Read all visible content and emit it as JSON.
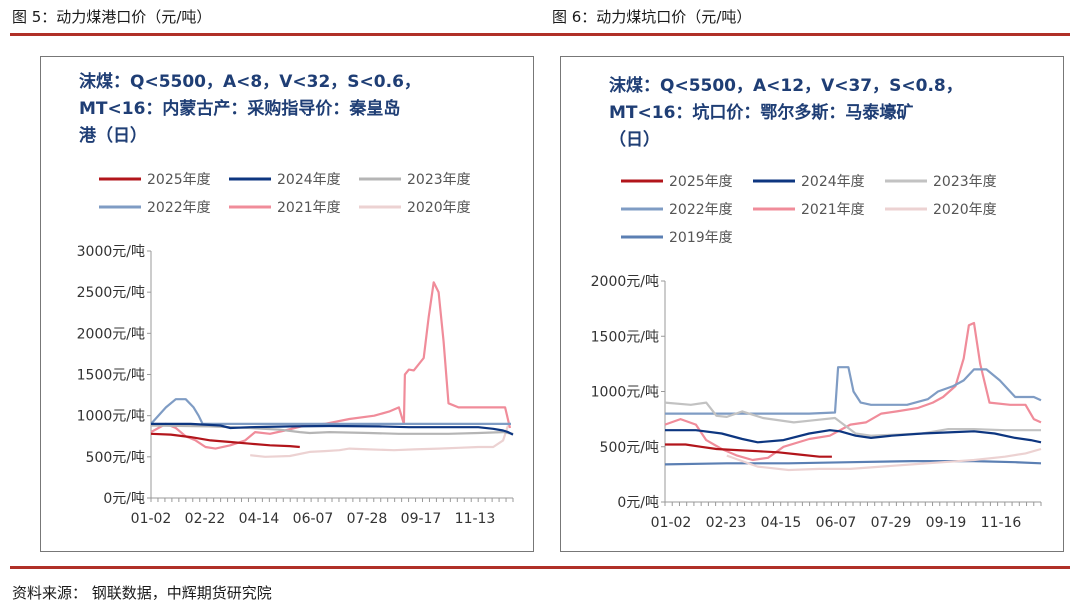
{
  "figures": [
    {
      "caption": "图 5：动力煤港口价（元/吨）",
      "chart_data": {
        "type": "line",
        "title_lines": [
          "沫煤：Q<5500，A<8，V<32，S<0.6，",
          "MT<16：内蒙古产：采购指导价：秦皇岛",
          "港（日）"
        ],
        "y_ticks": [
          "3000元/吨",
          "2500元/吨",
          "2000元/吨",
          "1500元/吨",
          "1000元/吨",
          "500元/吨",
          "0元/吨"
        ],
        "x_ticks": [
          "01-02",
          "02-22",
          "04-14",
          "06-07",
          "07-28",
          "09-17",
          "11-13"
        ],
        "ylim": [
          0,
          3000
        ],
        "x_domain": [
          0,
          365
        ],
        "legend": [
          [
            "2025年度",
            "2024年度",
            "2023年度"
          ],
          [
            "2022年度",
            "2021年度",
            "2020年度"
          ]
        ],
        "series": [
          {
            "name": "2025年度",
            "color": "#b2151b",
            "x": [
              0,
              20,
              40,
              60,
              80,
              100,
              120,
              140,
              150
            ],
            "y": [
              780,
              770,
              740,
              700,
              680,
              660,
              640,
              630,
              620
            ]
          },
          {
            "name": "2024年度",
            "color": "#0d3680",
            "x": [
              0,
              40,
              70,
              80,
              100,
              140,
              180,
              230,
              260,
              290,
              330,
              345,
              355,
              360,
              365
            ],
            "y": [
              900,
              900,
              880,
              850,
              860,
              870,
              875,
              870,
              860,
              860,
              860,
              840,
              820,
              800,
              770
            ]
          },
          {
            "name": "2023年度",
            "color": "#b5b5b5",
            "x": [
              0,
              60,
              80,
              100,
              130,
              150,
              160,
              180,
              220,
              250,
              300,
              330,
              355,
              360,
              365
            ],
            "y": [
              880,
              870,
              860,
              850,
              830,
              800,
              790,
              800,
              790,
              780,
              780,
              790,
              800,
              790,
              780
            ]
          },
          {
            "name": "2022年度",
            "color": "#7f9cc4",
            "x": [
              0,
              15,
              25,
              35,
              43,
              48,
              52,
              60,
              200,
              300,
              363
            ],
            "y": [
              900,
              1100,
              1200,
              1200,
              1100,
              1000,
              900,
              900,
              900,
              900,
              900
            ]
          },
          {
            "name": "2021年度",
            "color": "#f08c9a",
            "x": [
              0,
              15,
              25,
              35,
              45,
              55,
              65,
              80,
              95,
              105,
              120,
              135,
              155,
              175,
              200,
              225,
              240,
              250,
              255,
              256,
              260,
              265,
              275,
              280,
              285,
              290,
              295,
              300,
              310,
              325,
              345,
              357,
              362
            ],
            "y": [
              800,
              900,
              850,
              750,
              700,
              620,
              600,
              640,
              700,
              800,
              780,
              820,
              880,
              900,
              960,
              1000,
              1050,
              1100,
              900,
              1500,
              1560,
              1550,
              1700,
              2200,
              2620,
              2500,
              1900,
              1150,
              1100,
              1100,
              1100,
              1100,
              850
            ]
          },
          {
            "name": "2020年度",
            "color": "#ecd2d2",
            "x": [
              100,
              115,
              140,
              160,
              175,
              190,
              200,
              220,
              245,
              265,
              290,
              310,
              330,
              345,
              355,
              360
            ],
            "y": [
              520,
              500,
              510,
              560,
              570,
              580,
              600,
              590,
              580,
              590,
              600,
              610,
              620,
              620,
              700,
              880
            ]
          }
        ]
      }
    },
    {
      "caption": "图 6：动力煤坑口价（元/吨）",
      "chart_data": {
        "type": "line",
        "title_lines": [
          "沫煤：Q<5500，A<12，V<37，S<0.8，",
          "MT<16：坑口价：鄂尔多斯：马泰壕矿",
          "（日）"
        ],
        "y_ticks": [
          "2000元/吨",
          "1500元/吨",
          "1000元/吨",
          "500元/吨",
          "0元/吨"
        ],
        "x_ticks": [
          "01-02",
          "02-23",
          "04-15",
          "06-07",
          "07-29",
          "09-19",
          "11-16"
        ],
        "ylim": [
          0,
          2000
        ],
        "x_domain": [
          0,
          365
        ],
        "legend": [
          [
            "2025年度",
            "2024年度",
            "2023年度"
          ],
          [
            "2022年度",
            "2021年度",
            "2020年度"
          ],
          [
            "2019年度"
          ]
        ],
        "series": [
          {
            "name": "2025年度",
            "color": "#b2151b",
            "x": [
              0,
              20,
              35,
              50,
              70,
              90,
              110,
              130,
              150,
              162
            ],
            "y": [
              520,
              520,
              500,
              480,
              470,
              460,
              450,
              430,
              410,
              410
            ]
          },
          {
            "name": "2024年度",
            "color": "#0d3680",
            "x": [
              0,
              30,
              55,
              75,
              90,
              115,
              140,
              160,
              170,
              185,
              200,
              220,
              250,
              275,
              300,
              320,
              340,
              355,
              365
            ],
            "y": [
              650,
              650,
              620,
              570,
              540,
              560,
              620,
              650,
              640,
              600,
              580,
              600,
              620,
              630,
              640,
              620,
              580,
              560,
              540
            ]
          },
          {
            "name": "2023年度",
            "color": "#c2c2c2",
            "x": [
              0,
              25,
              40,
              50,
              60,
              75,
              95,
              125,
              145,
              165,
              185,
              200,
              225,
              250,
              275,
              300,
              330,
              350,
              365
            ],
            "y": [
              900,
              880,
              900,
              780,
              770,
              820,
              760,
              720,
              740,
              760,
              620,
              600,
              610,
              620,
              660,
              660,
              650,
              650,
              650
            ]
          },
          {
            "name": "2022年度",
            "color": "#7f9cc4",
            "x": [
              0,
              100,
              140,
              165,
              168,
              178,
              183,
              190,
              200,
              235,
              255,
              265,
              280,
              290,
              300,
              312,
              325,
              340,
              358,
              365
            ],
            "y": [
              800,
              800,
              800,
              810,
              1220,
              1220,
              1000,
              900,
              880,
              880,
              930,
              1000,
              1050,
              1100,
              1200,
              1200,
              1100,
              950,
              950,
              920
            ]
          },
          {
            "name": "2021年度",
            "color": "#f08c9a",
            "x": [
              0,
              15,
              30,
              40,
              55,
              70,
              85,
              100,
              115,
              140,
              160,
              180,
              195,
              210,
              225,
              245,
              260,
              270,
              282,
              290,
              295,
              300,
              306,
              315,
              335,
              350,
              358,
              365
            ],
            "y": [
              700,
              750,
              700,
              560,
              480,
              420,
              380,
              400,
              500,
              570,
              600,
              700,
              720,
              800,
              820,
              850,
              900,
              950,
              1050,
              1300,
              1600,
              1620,
              1250,
              900,
              880,
              880,
              750,
              720
            ]
          },
          {
            "name": "2020年度",
            "color": "#ecd2d2",
            "x": [
              60,
              90,
              120,
              150,
              180,
              210,
              240,
              270,
              300,
              330,
              350,
              365
            ],
            "y": [
              420,
              320,
              290,
              300,
              300,
              320,
              340,
              360,
              380,
              410,
              440,
              480
            ]
          },
          {
            "name": "2019年度",
            "color": "#5b7fb3",
            "x": [
              0,
              60,
              120,
              180,
              240,
              300,
              340,
              365
            ],
            "y": [
              340,
              350,
              350,
              360,
              370,
              370,
              360,
              350
            ]
          }
        ]
      }
    }
  ],
  "source": "资料来源：  钢联数据，中辉期货研究院"
}
